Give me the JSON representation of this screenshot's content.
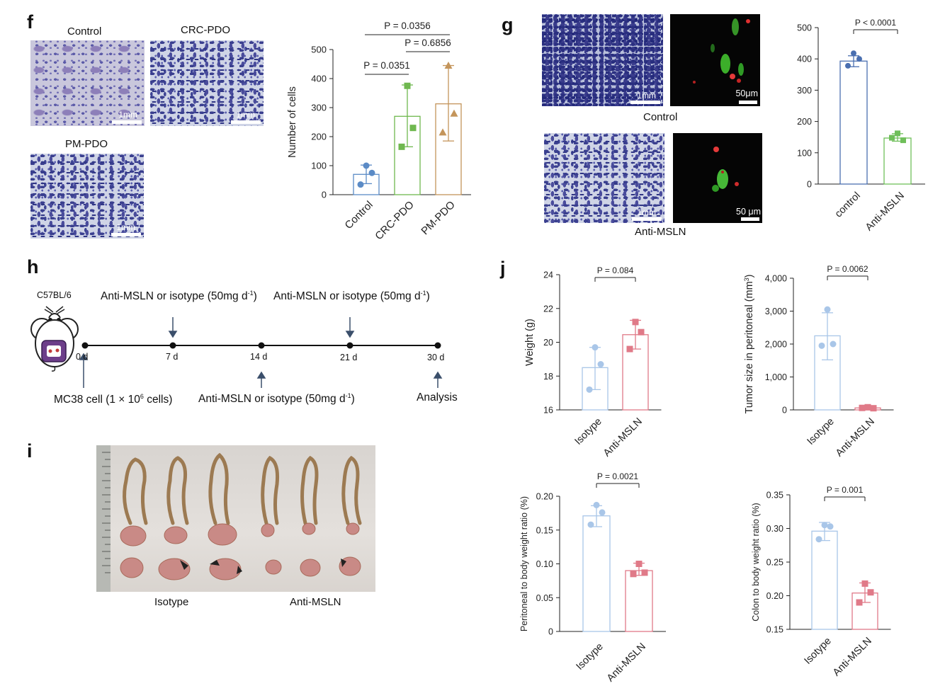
{
  "panels": {
    "f": {
      "letter": "f",
      "images": {
        "control": {
          "label": "Control",
          "scale": "1mm"
        },
        "crc": {
          "label": "CRC-PDO",
          "scale": "1mm"
        },
        "pm": {
          "label": "PM-PDO",
          "scale": "1mm"
        }
      }
    },
    "g": {
      "letter": "g",
      "images": {
        "control_label": "Control",
        "anti_label": "Anti-MSLN",
        "scale_mm_top": "1mm",
        "scale_um_top": "50μm",
        "scale_mm_bottom": "1mm",
        "scale_um_bottom": "50 μm"
      }
    },
    "h": {
      "letter": "h",
      "mouse_label": "C57BL/6",
      "top_labels": [
        "Anti-MSLN or isotype (50mg d",
        "Anti-MSLN or isotype (50mg d"
      ],
      "top_sup": [
        "-1",
        "-1"
      ],
      "top_close": [
        ")",
        ")"
      ],
      "days": [
        "0 d",
        "7 d",
        "14 d",
        "21 d",
        "30 d"
      ],
      "bottom_left_pre": "MC38 cell (1 × 10",
      "bottom_left_sup": "6",
      "bottom_left_post": " cells)",
      "bottom_mid": "Anti-MSLN or isotype (50mg d",
      "bottom_mid_sup": "-1",
      "bottom_mid_close": ")",
      "bottom_right": "Analysis"
    },
    "i": {
      "letter": "i",
      "labels": [
        "Isotype",
        "Anti-MSLN"
      ]
    },
    "j": {
      "letter": "j"
    }
  },
  "colors": {
    "control": "#5b8bc6",
    "crc": "#6fb84f",
    "pm": "#c4955b",
    "isotype": "#a9c6e8",
    "anti": "#e07a88",
    "g_control": "#4a6fb0",
    "g_anti": "#6fbf5a"
  },
  "chart_data": [
    {
      "id": "f_chart",
      "type": "bar",
      "categories": [
        "Control",
        "CRC-PDO",
        "PM-PDO"
      ],
      "values": [
        70,
        270,
        313
      ],
      "err_low": [
        38,
        165,
        185
      ],
      "err_high": [
        102,
        378,
        445
      ],
      "points": [
        [
          100,
          75,
          35
        ],
        [
          375,
          230,
          165
        ],
        [
          445,
          280,
          215
        ]
      ],
      "markers": [
        "circle",
        "square",
        "triangle"
      ],
      "ylabel": "Number of cells",
      "ylim": [
        0,
        500
      ],
      "yticks": [
        0,
        100,
        200,
        300,
        400,
        500
      ],
      "brackets": [
        {
          "from": 0,
          "to": 1,
          "text": "P = 0.0351"
        },
        {
          "from": 1,
          "to": 2,
          "text": "P = 0.6856"
        },
        {
          "from": 0,
          "to": 2,
          "text": "P = 0.0356"
        }
      ]
    },
    {
      "id": "g_chart",
      "type": "bar",
      "categories": [
        "control",
        "Anti-MSLN"
      ],
      "values": [
        393,
        147
      ],
      "err_low": [
        375,
        137
      ],
      "err_high": [
        410,
        161
      ],
      "points": [
        [
          418,
          400,
          378
        ],
        [
          162,
          140,
          148
        ]
      ],
      "markers": [
        "circle",
        "square"
      ],
      "ylabel": "",
      "ylim": [
        0,
        500
      ],
      "yticks": [
        0,
        100,
        200,
        300,
        400,
        500
      ],
      "brackets": [
        {
          "from": 0,
          "to": 1,
          "text": "P < 0.0001"
        }
      ]
    },
    {
      "id": "j1",
      "type": "bar",
      "categories": [
        "Isotype",
        "Anti-MSLN"
      ],
      "values": [
        18.5,
        20.45
      ],
      "err_low": [
        17.2,
        19.6
      ],
      "err_high": [
        19.7,
        21.3
      ],
      "points": [
        [
          19.7,
          18.7,
          17.2
        ],
        [
          21.2,
          20.6,
          19.6
        ]
      ],
      "markers": [
        "circle",
        "square"
      ],
      "ylabel": "Weight (g)",
      "ylim": [
        16,
        24
      ],
      "yticks": [
        "16",
        "18",
        "20",
        "22",
        "24"
      ],
      "brackets": [
        {
          "from": 0,
          "to": 1,
          "text": "P = 0.084"
        }
      ]
    },
    {
      "id": "j2",
      "type": "bar",
      "categories": [
        "Isotype",
        "Anti-MSLN"
      ],
      "values": [
        2250,
        60
      ],
      "err_low": [
        1520,
        20
      ],
      "err_high": [
        2950,
        100
      ],
      "points": [
        [
          3050,
          2000,
          1950
        ],
        [
          80,
          50,
          60
        ]
      ],
      "markers": [
        "circle",
        "square"
      ],
      "ylabel": "Tumor size in peritoneal (mm",
      "ylabel_sup": "3",
      "ylabel_close": ")",
      "ylim": [
        0,
        4000
      ],
      "yticks": [
        "0",
        "1,000",
        "2,000",
        "3,000",
        "4,000"
      ],
      "brackets": [
        {
          "from": 0,
          "to": 1,
          "text": "P = 0.0062"
        }
      ]
    },
    {
      "id": "j3",
      "type": "bar",
      "categories": [
        "Isotype",
        "Anti-MSLN"
      ],
      "values": [
        0.171,
        0.09
      ],
      "err_low": [
        0.155,
        0.083
      ],
      "err_high": [
        0.186,
        0.101
      ],
      "points": [
        [
          0.187,
          0.176,
          0.158
        ],
        [
          0.1,
          0.087,
          0.085
        ]
      ],
      "markers": [
        "circle",
        "square"
      ],
      "ylabel": "Peritoneal to body weight ratio (%)",
      "ylim": [
        0,
        0.2
      ],
      "yticks": [
        "0",
        "0.05",
        "0.10",
        "0.15",
        "0.20"
      ],
      "brackets": [
        {
          "from": 0,
          "to": 1,
          "text": "P = 0.0021"
        }
      ]
    },
    {
      "id": "j4",
      "type": "bar",
      "categories": [
        "Isotype",
        "Anti-MSLN"
      ],
      "values": [
        0.296,
        0.204
      ],
      "err_low": [
        0.282,
        0.19
      ],
      "err_high": [
        0.309,
        0.219
      ],
      "points": [
        [
          0.305,
          0.303,
          0.284
        ],
        [
          0.218,
          0.205,
          0.19
        ]
      ],
      "markers": [
        "circle",
        "square"
      ],
      "ylabel": "Colon to body weight ratio (%)",
      "ylim": [
        0.15,
        0.35
      ],
      "yticks": [
        "0.15",
        "0.20",
        "0.25",
        "0.30",
        "0.35"
      ],
      "brackets": [
        {
          "from": 0,
          "to": 1,
          "text": "P = 0.001"
        }
      ]
    }
  ]
}
